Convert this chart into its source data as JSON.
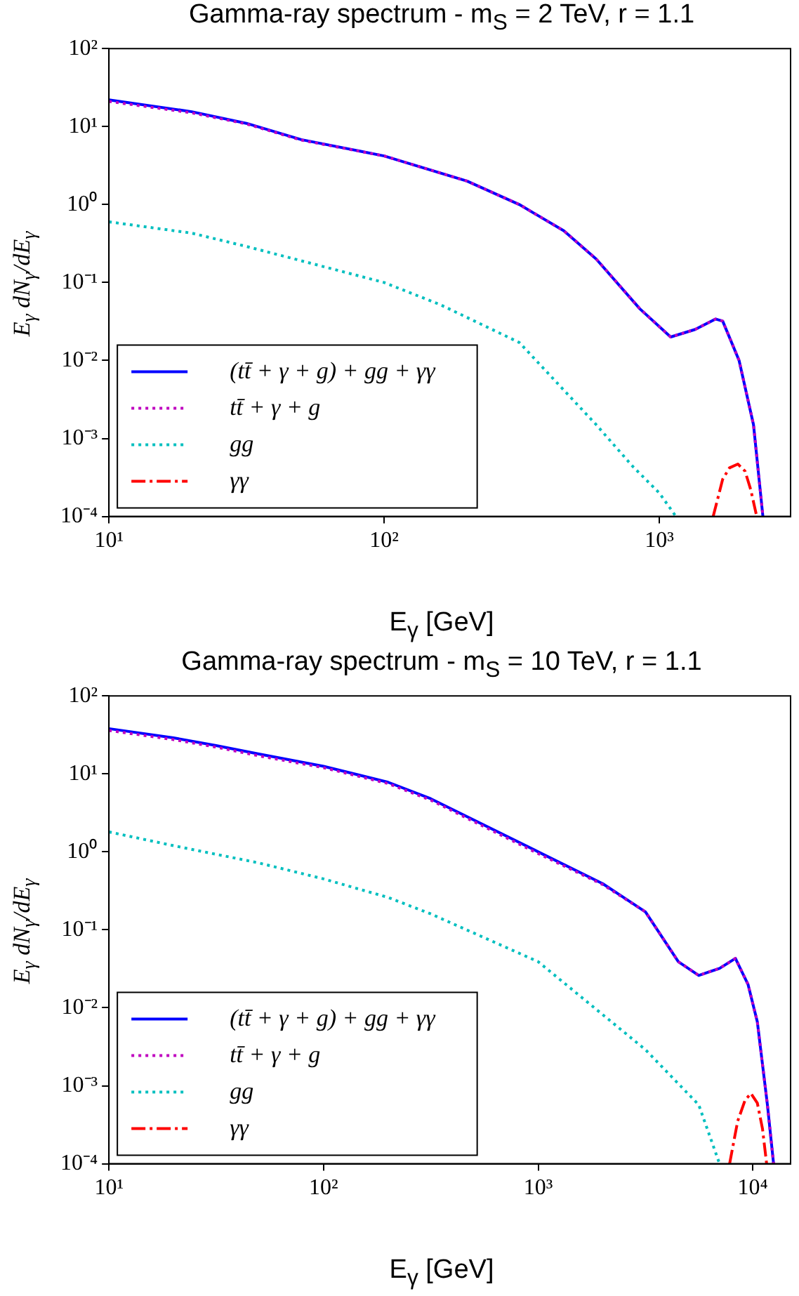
{
  "chart_data": [
    {
      "type": "line",
      "title": "Gamma-ray spectrum - m$_{S}$ = 2 TeV, r = 1.1",
      "xlabel": "E$_{γ}$ [GeV]",
      "ylabel": "E$_{γ}$ dN$_{γ}$/dE$_{γ}$",
      "log": "xy",
      "legend": "bottom left",
      "grid": false,
      "xlim": [
        10,
        3000
      ],
      "xticks": [
        {
          "value": 10,
          "label": "10¹"
        },
        {
          "value": 100,
          "label": "10²"
        },
        {
          "value": 1000,
          "label": "10³"
        }
      ],
      "ylim": [
        0.0001,
        100
      ],
      "yticks": [
        {
          "value": 0.0001,
          "label": "10⁻⁴"
        },
        {
          "value": 0.001,
          "label": "10⁻³"
        },
        {
          "value": 0.01,
          "label": "10⁻²"
        },
        {
          "value": 0.1,
          "label": "10⁻¹"
        },
        {
          "value": 1,
          "label": "10⁰"
        },
        {
          "value": 10,
          "label": "10¹"
        },
        {
          "value": 100,
          "label": "10²"
        }
      ],
      "series": [
        {
          "name": "(tt̄ + γ + g) + gg + γγ",
          "color": "#0000ff",
          "line_style": "solid",
          "x": [
            10,
            20,
            31.6,
            50,
            100,
            200,
            310,
            450,
            590,
            850,
            1100,
            1350,
            1600,
            1700,
            1950,
            2200,
            2380
          ],
          "values": [
            22,
            15.5,
            11,
            6.8,
            4.2,
            2.0,
            1.0,
            0.46,
            0.2,
            0.046,
            0.02,
            0.025,
            0.034,
            0.032,
            0.01,
            0.0015,
            0.0001
          ]
        },
        {
          "name": "tt̄ + γ + g",
          "color": "#bf00bf",
          "line_style": "dotted",
          "x": [
            10,
            20,
            31.6,
            50,
            100,
            200,
            310,
            450,
            590,
            850,
            1100,
            1350,
            1600,
            1700,
            1950,
            2200,
            2380
          ],
          "values": [
            21,
            15,
            10.8,
            6.7,
            4.2,
            2.0,
            1.0,
            0.46,
            0.2,
            0.046,
            0.02,
            0.025,
            0.034,
            0.032,
            0.01,
            0.0015,
            0.0001
          ]
        },
        {
          "name": "gg",
          "color": "#00bfbf",
          "line_style": "dotted",
          "x": [
            10,
            20,
            31.6,
            50,
            100,
            160,
            310,
            590,
            800,
            1000,
            1150
          ],
          "values": [
            0.6,
            0.43,
            0.29,
            0.19,
            0.1,
            0.052,
            0.017,
            0.0015,
            0.00044,
            0.0002,
            0.0001
          ]
        },
        {
          "name": "γγ",
          "color": "#ff0000",
          "line_style": "dashed",
          "x": [
            1570,
            1700,
            1800,
            1930,
            2050,
            2150,
            2260
          ],
          "values": [
            0.0001,
            0.0003,
            0.00042,
            0.00047,
            0.00038,
            0.00022,
            0.0001
          ]
        }
      ]
    },
    {
      "type": "line",
      "title": "Gamma-ray spectrum - m$_{S}$ = 10 TeV, r = 1.1",
      "xlabel": "E$_{γ}$ [GeV]",
      "ylabel": "E$_{γ}$ dN$_{γ}$/dE$_{γ}$",
      "log": "xy",
      "legend": "bottom left",
      "grid": false,
      "xlim": [
        10,
        15000
      ],
      "xticks": [
        {
          "value": 10,
          "label": "10¹"
        },
        {
          "value": 100,
          "label": "10²"
        },
        {
          "value": 1000,
          "label": "10³"
        },
        {
          "value": 10000,
          "label": "10⁴"
        }
      ],
      "ylim": [
        0.0001,
        100
      ],
      "yticks": [
        {
          "value": 0.0001,
          "label": "10⁻⁴"
        },
        {
          "value": 0.001,
          "label": "10⁻³"
        },
        {
          "value": 0.01,
          "label": "10⁻²"
        },
        {
          "value": 0.1,
          "label": "10⁻¹"
        },
        {
          "value": 1,
          "label": "10⁰"
        },
        {
          "value": 10,
          "label": "10¹"
        },
        {
          "value": 100,
          "label": "10²"
        }
      ],
      "series": [
        {
          "name": "(tt̄ + γ + g) + gg + γγ",
          "color": "#0000ff",
          "line_style": "solid",
          "x": [
            10,
            20,
            31.6,
            50,
            100,
            200,
            316,
            1000,
            2000,
            3162,
            4500,
            5600,
            7000,
            8300,
            9500,
            10500,
            11700,
            12500
          ],
          "values": [
            38,
            29,
            23,
            18,
            12.5,
            7.8,
            4.8,
            1.0,
            0.39,
            0.17,
            0.039,
            0.026,
            0.032,
            0.043,
            0.02,
            0.0066,
            0.00057,
            0.0001
          ]
        },
        {
          "name": "tt̄ + γ + g",
          "color": "#bf00bf",
          "line_style": "dotted",
          "x": [
            10,
            20,
            31.6,
            50,
            100,
            200,
            316,
            1000,
            2000,
            3162,
            4500,
            5600,
            7000,
            8300,
            9500,
            10500,
            11700,
            12500
          ],
          "values": [
            36,
            27.5,
            22,
            17,
            12,
            7.5,
            4.6,
            0.95,
            0.38,
            0.17,
            0.039,
            0.026,
            0.032,
            0.043,
            0.02,
            0.0066,
            0.00057,
            0.0001
          ]
        },
        {
          "name": "gg",
          "color": "#00bfbf",
          "line_style": "dotted",
          "x": [
            10,
            20,
            31.6,
            50,
            100,
            200,
            316,
            1000,
            3162,
            5600,
            7000
          ],
          "values": [
            1.8,
            1.2,
            0.93,
            0.72,
            0.45,
            0.26,
            0.16,
            0.039,
            0.0029,
            0.00057,
            0.0001
          ]
        },
        {
          "name": "γγ",
          "color": "#ff0000",
          "line_style": "dashed",
          "x": [
            7800,
            8500,
            9200,
            9800,
            10500,
            11100,
            11600
          ],
          "values": [
            0.0001,
            0.00035,
            0.00065,
            0.0008,
            0.0006,
            0.00028,
            0.0001
          ]
        }
      ]
    }
  ]
}
